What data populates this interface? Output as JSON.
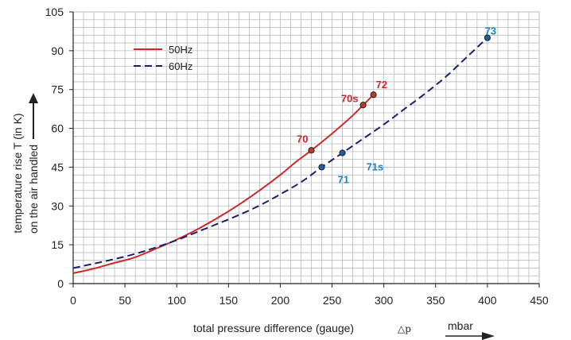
{
  "chart_data": {
    "type": "line",
    "xlabel": "total pressure difference (gauge)",
    "xlabel_symbol": "△p",
    "xunit": "mbar",
    "ylabel_line1": "temperature rise T (in K)",
    "ylabel_line2": "on the air handled",
    "xlim": [
      0,
      450
    ],
    "ylim": [
      0,
      105
    ],
    "xticks": [
      0,
      50,
      100,
      150,
      200,
      250,
      300,
      350,
      400,
      450
    ],
    "yticks": [
      0,
      15,
      30,
      45,
      60,
      75,
      90,
      105
    ],
    "grid": true,
    "legend_position": "top-left",
    "series": [
      {
        "name": "50Hz",
        "color": "#cc2a2a",
        "dash": "solid",
        "x": [
          0,
          20,
          40,
          60,
          80,
          100,
          120,
          140,
          160,
          180,
          200,
          215,
          230,
          250,
          270,
          280,
          290
        ],
        "y": [
          4,
          5.8,
          8,
          10.2,
          13.5,
          17,
          21,
          25.5,
          30.5,
          36,
          42,
          47,
          51.5,
          58,
          65,
          69,
          73
        ]
      },
      {
        "name": "60Hz",
        "color": "#1e1e6e",
        "dash": "dashed",
        "x": [
          0,
          20,
          40,
          60,
          80,
          100,
          120,
          140,
          160,
          180,
          200,
          220,
          240,
          260,
          280,
          300,
          320,
          340,
          360,
          380,
          400
        ],
        "y": [
          6,
          7.7,
          9.5,
          11.5,
          14,
          16.8,
          20,
          23.2,
          26.5,
          30.2,
          34.5,
          39.2,
          45,
          50.5,
          56,
          61.5,
          67.5,
          73.5,
          80,
          87.5,
          95
        ]
      }
    ],
    "points": [
      {
        "label": "70",
        "x": 230,
        "y": 51.5,
        "series": "50Hz",
        "label_color": "#c62828",
        "anchor": "above-left"
      },
      {
        "label": "70s",
        "x": 280,
        "y": 69,
        "series": "50Hz",
        "label_color": "#c62828",
        "anchor": "left"
      },
      {
        "label": "72",
        "x": 290,
        "y": 73,
        "series": "50Hz",
        "label_color": "#c62828",
        "anchor": "above-right"
      },
      {
        "label": "71",
        "x": 240,
        "y": 45,
        "series": "60Hz",
        "label_color": "#1a7fc0",
        "anchor": "below-right"
      },
      {
        "label": "71s",
        "x": 260,
        "y": 50.5,
        "series": "60Hz",
        "label_color": "#1a7fc0",
        "anchor": "right-below"
      },
      {
        "label": "73",
        "x": 400,
        "y": 95,
        "series": "60Hz",
        "label_color": "#1a7fc0",
        "anchor": "above"
      }
    ],
    "colors": {
      "grid_minor": "#b9bbbe",
      "axis": "#222222",
      "point_fill_50": "#c0392b",
      "point_fill_60": "#1f5fa0"
    }
  }
}
